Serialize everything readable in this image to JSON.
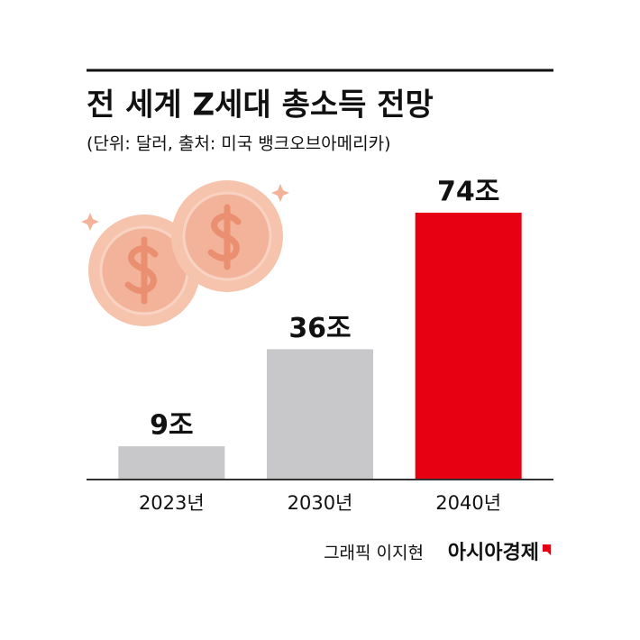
{
  "chart_data": {
    "type": "bar",
    "title": "전 세계 Z세대 총소득 전망",
    "subtitle": "(단위: 달러, 출처: 미국 뱅크오브아메리카)",
    "categories": [
      "2023년",
      "2030년",
      "2040년"
    ],
    "values": [
      9,
      36,
      74
    ],
    "value_labels": [
      "9조",
      "36조",
      "74조"
    ],
    "colors": [
      "#c8c8ca",
      "#c8c8ca",
      "#e60012"
    ],
    "ylim": [
      0,
      80
    ],
    "credit": "그래픽 이지현",
    "publisher": "아시아경제"
  }
}
